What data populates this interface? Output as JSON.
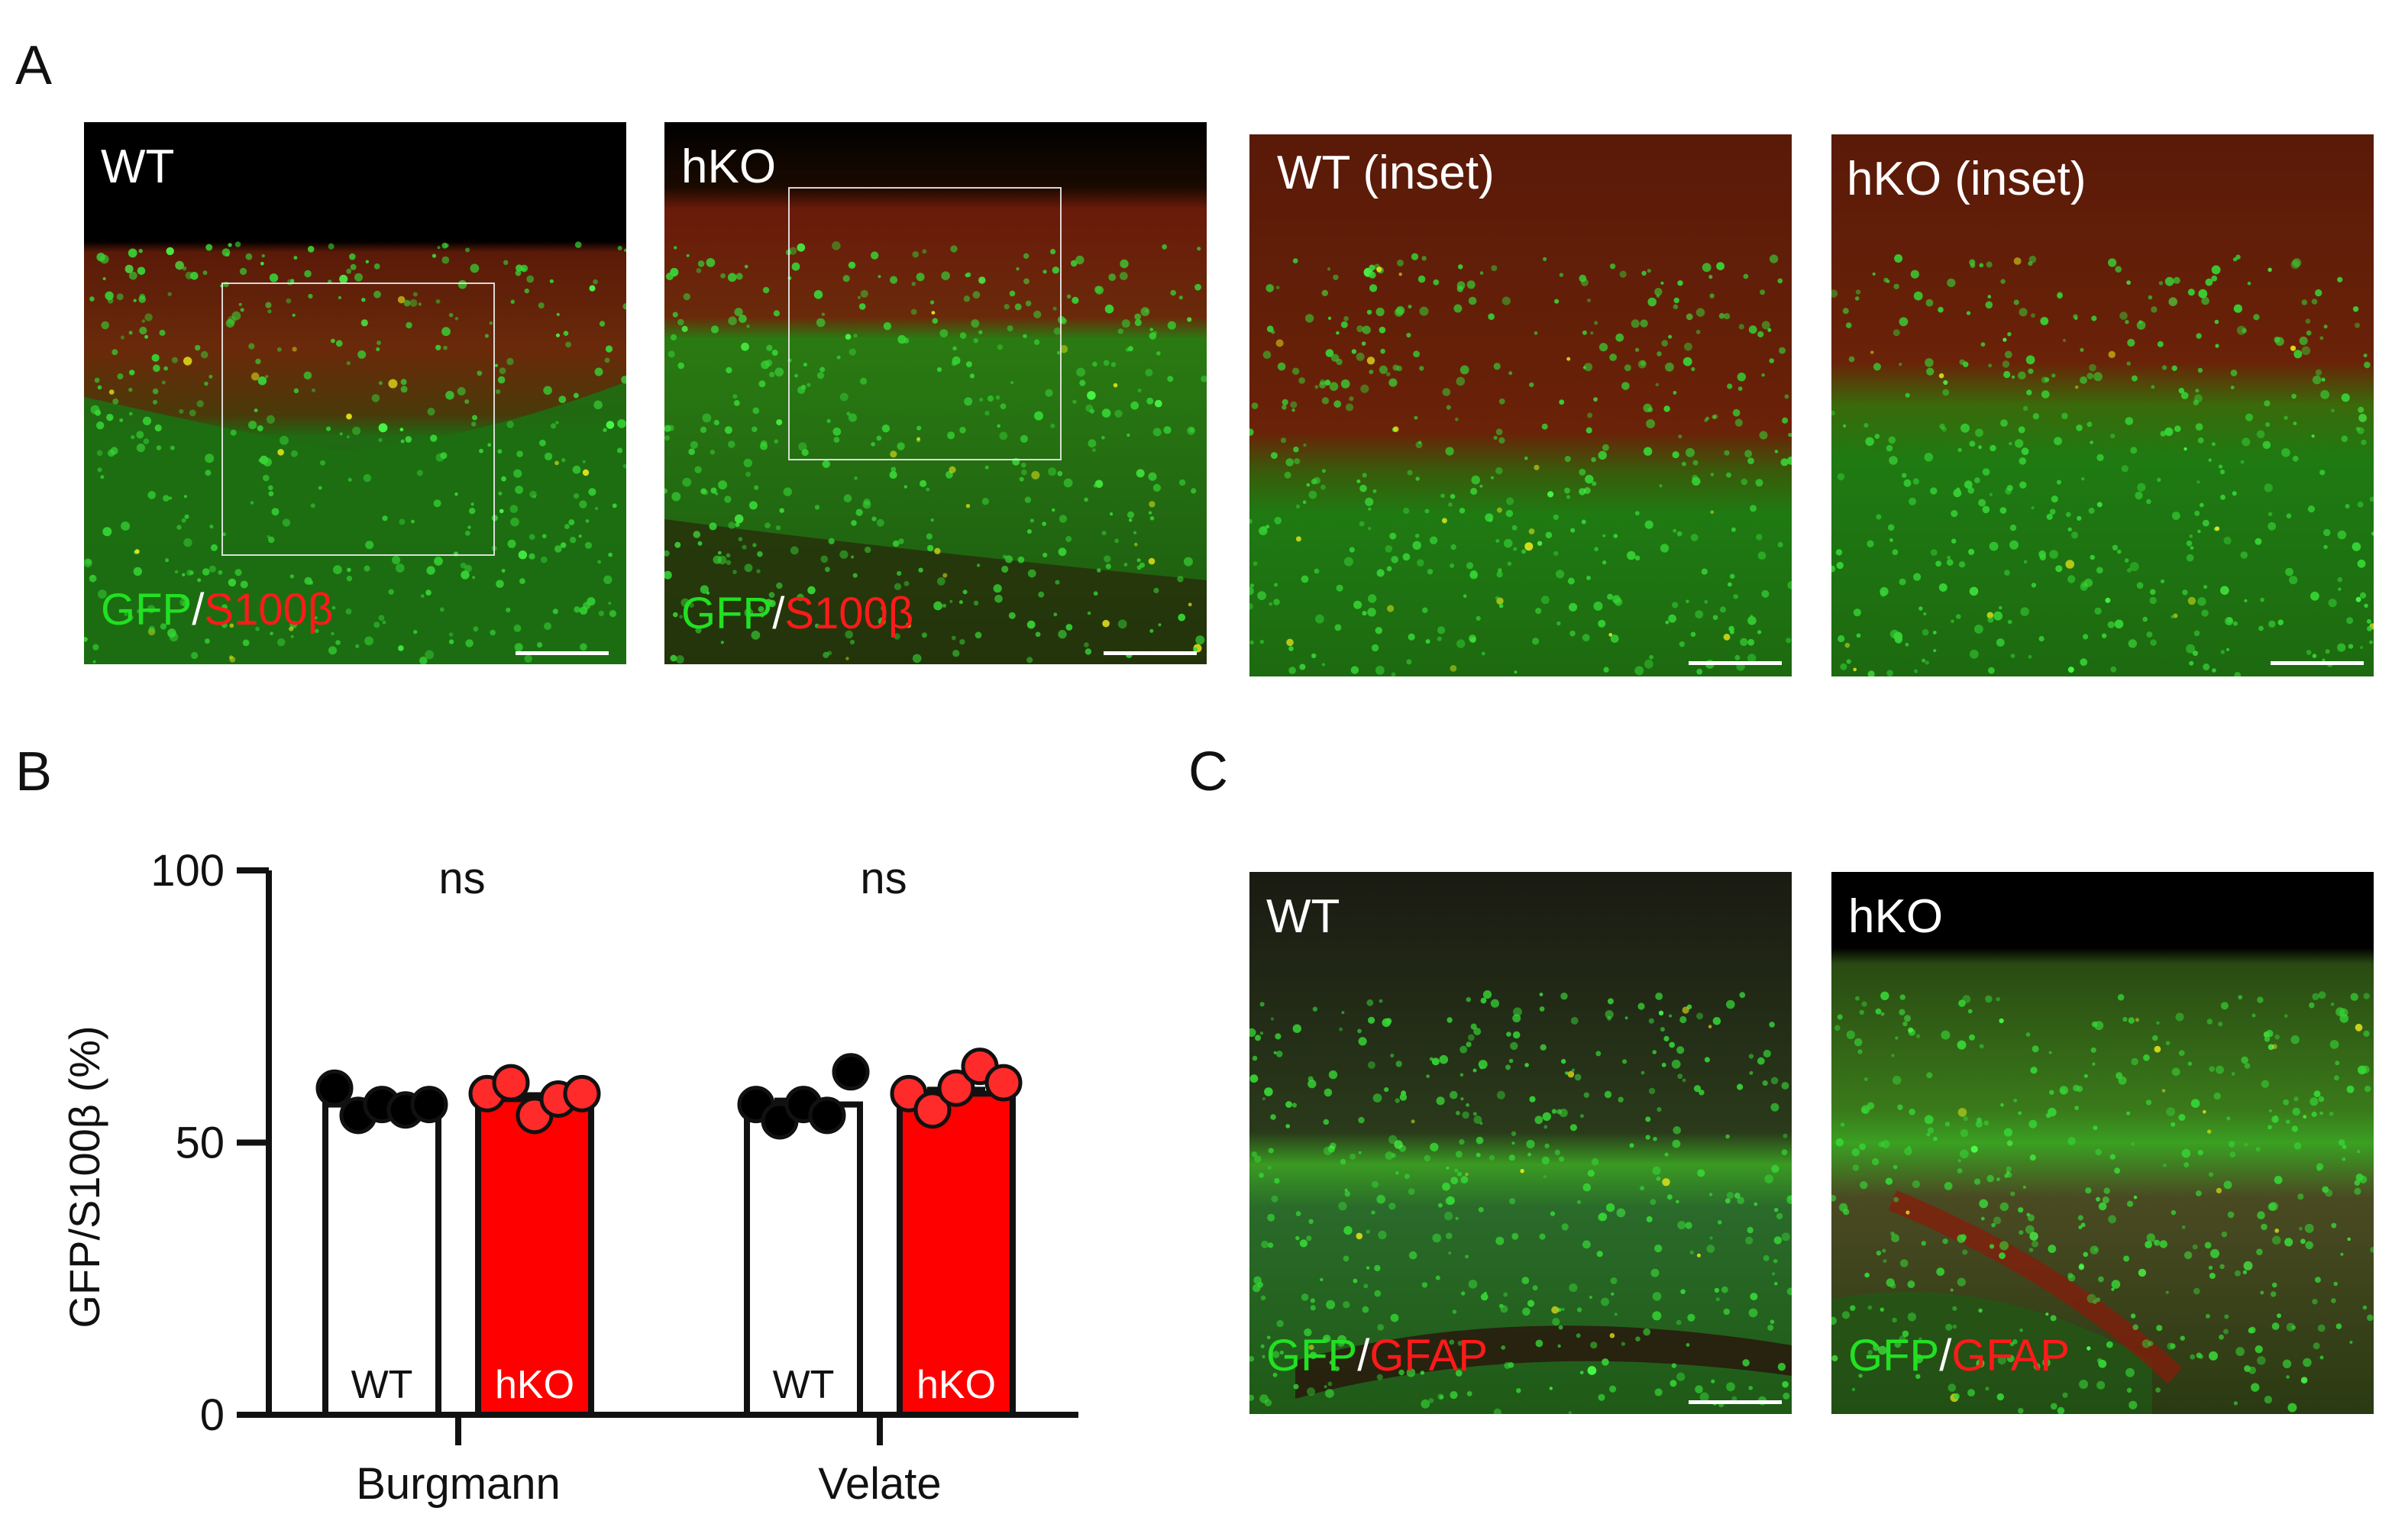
{
  "panels": {
    "a": {
      "letter": "A"
    },
    "b": {
      "letter": "B"
    },
    "c": {
      "letter": "C"
    }
  },
  "images": {
    "a_wt": {
      "label": "WT",
      "stain_green": "GFP",
      "stain_sep": "/",
      "stain_red": "S100β"
    },
    "a_hko": {
      "label": "hKO",
      "stain_green": "GFP",
      "stain_sep": "/",
      "stain_red": "S100β"
    },
    "a_wt_inset": {
      "label": "WT (inset)"
    },
    "a_hko_inset": {
      "label": "hKO (inset)"
    },
    "c_wt": {
      "label": "WT",
      "stain_green": "GFP",
      "stain_sep": "/",
      "stain_red": "GFAP"
    },
    "c_hko": {
      "label": "hKO",
      "stain_green": "GFP",
      "stain_sep": "/",
      "stain_red": "GFAP"
    }
  },
  "colors": {
    "gfp_green": "#22e022",
    "s100_red": "#ff1a1a",
    "wt_bar": "#ffffff",
    "hko_bar": "#ff0000",
    "wt_dot": "#000000",
    "hko_dot": "#ff2a2a"
  },
  "chart_data": {
    "type": "bar",
    "title": "",
    "xlabel": "",
    "ylabel": "GFP/S100β (%)",
    "ylim": [
      0,
      100
    ],
    "yticks": [
      0,
      50,
      100
    ],
    "categories": [
      "Burgmann",
      "Velate"
    ],
    "series": [
      {
        "name": "WT",
        "values": [
          57,
          57
        ],
        "points": [
          [
            60,
            55,
            57,
            56,
            57
          ],
          [
            57,
            54,
            57,
            55,
            63
          ]
        ]
      },
      {
        "name": "hKO",
        "values": [
          58,
          59
        ],
        "points": [
          [
            59,
            61,
            55,
            58,
            59
          ],
          [
            59,
            56,
            60,
            64,
            61
          ]
        ]
      }
    ],
    "significance": [
      "ns",
      "ns"
    ]
  }
}
